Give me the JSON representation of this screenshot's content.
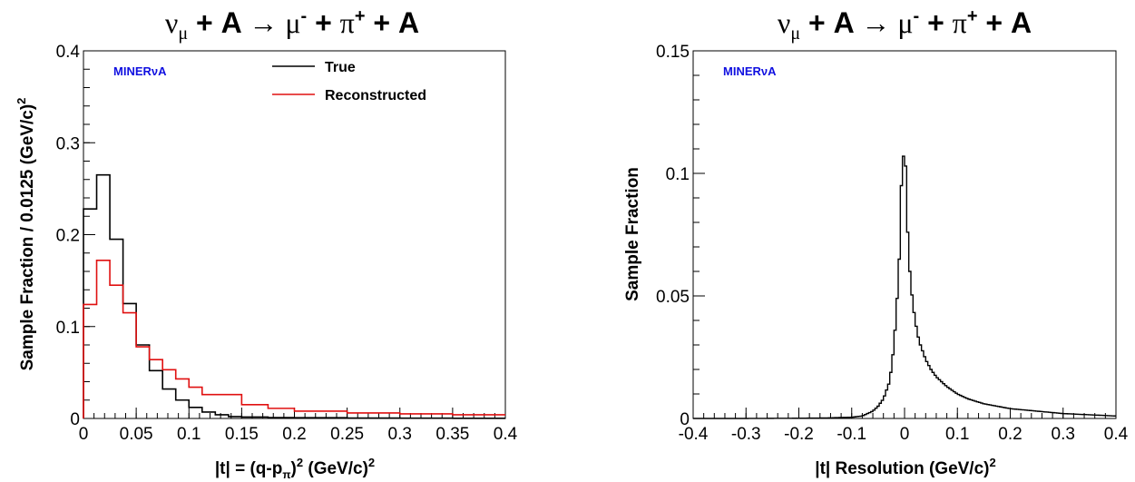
{
  "chart_data": [
    {
      "type": "line",
      "title_parts": [
        "ν",
        "μ",
        " + A ",
        "→",
        " μ",
        "-",
        " + ",
        "π",
        "+",
        " + A"
      ],
      "experiment_label": "MINERνA",
      "xlabel_parts": [
        "|t| = (q-p",
        "π",
        ")",
        "2",
        " (GeV/c)",
        "2"
      ],
      "ylabel_parts": [
        "Sample Fraction / 0.0125 (GeV/c)",
        "2"
      ],
      "xlim": [
        0,
        0.4
      ],
      "ylim": [
        0,
        0.4
      ],
      "xticks": [
        "0",
        "0.05",
        "0.1",
        "0.15",
        "0.2",
        "0.25",
        "0.3",
        "0.35",
        "0.4"
      ],
      "yticks": [
        "0",
        "0.1",
        "0.2",
        "0.3",
        "0.4"
      ],
      "legend_position": "top-right",
      "series": [
        {
          "name": "True",
          "color": "#000000",
          "bin_edges": [
            0,
            0.0125,
            0.025,
            0.0375,
            0.05,
            0.0625,
            0.075,
            0.0875,
            0.1,
            0.1125,
            0.125,
            0.1375,
            0.15,
            0.175,
            0.2,
            0.25,
            0.3,
            0.35,
            0.4
          ],
          "values": [
            0.228,
            0.265,
            0.195,
            0.125,
            0.08,
            0.052,
            0.032,
            0.02,
            0.012,
            0.007,
            0.004,
            0.002,
            0.0015,
            0.001,
            0.0008,
            0.0005,
            0.0003,
            0.0002
          ]
        },
        {
          "name": "Reconstructed",
          "color": "#e01010",
          "bin_edges": [
            0,
            0.0125,
            0.025,
            0.0375,
            0.05,
            0.0625,
            0.075,
            0.0875,
            0.1,
            0.1125,
            0.125,
            0.1375,
            0.15,
            0.175,
            0.2,
            0.25,
            0.3,
            0.35,
            0.4
          ],
          "values": [
            0.124,
            0.172,
            0.145,
            0.115,
            0.078,
            0.064,
            0.053,
            0.043,
            0.034,
            0.026,
            0.026,
            0.026,
            0.015,
            0.011,
            0.008,
            0.006,
            0.005,
            0.004
          ]
        }
      ]
    },
    {
      "type": "line",
      "title_parts": [
        "ν",
        "μ",
        " + A ",
        "→",
        " μ",
        "-",
        " + ",
        "π",
        "+",
        " + A"
      ],
      "experiment_label": "MINERνA",
      "xlabel_parts": [
        "|t| Resolution (GeV/c)",
        "2"
      ],
      "ylabel": "Sample Fraction",
      "xlim": [
        -0.4,
        0.4
      ],
      "ylim": [
        0,
        0.15
      ],
      "xticks": [
        "-0.4",
        "-0.3",
        "-0.2",
        "-0.1",
        "0",
        "0.1",
        "0.2",
        "0.3",
        "0.4"
      ],
      "yticks": [
        "0",
        "0.05",
        "0.1",
        "0.15"
      ],
      "series": [
        {
          "color": "#000000",
          "x": [
            -0.4,
            -0.3,
            -0.2,
            -0.15,
            -0.1,
            -0.08,
            -0.06,
            -0.05,
            -0.04,
            -0.03,
            -0.025,
            -0.02,
            -0.015,
            -0.01,
            -0.006,
            -0.003,
            0,
            0.003,
            0.006,
            0.01,
            0.015,
            0.02,
            0.025,
            0.03,
            0.04,
            0.05,
            0.06,
            0.07,
            0.08,
            0.1,
            0.12,
            0.15,
            0.2,
            0.25,
            0.3,
            0.35,
            0.4
          ],
          "values": [
            0,
            0,
            0.0001,
            0.0002,
            0.0005,
            0.001,
            0.003,
            0.005,
            0.008,
            0.014,
            0.02,
            0.03,
            0.045,
            0.065,
            0.095,
            0.104,
            0.113,
            0.098,
            0.076,
            0.06,
            0.048,
            0.04,
            0.034,
            0.03,
            0.024,
            0.02,
            0.017,
            0.015,
            0.013,
            0.01,
            0.008,
            0.006,
            0.004,
            0.003,
            0.002,
            0.0015,
            0.001
          ]
        }
      ]
    }
  ]
}
